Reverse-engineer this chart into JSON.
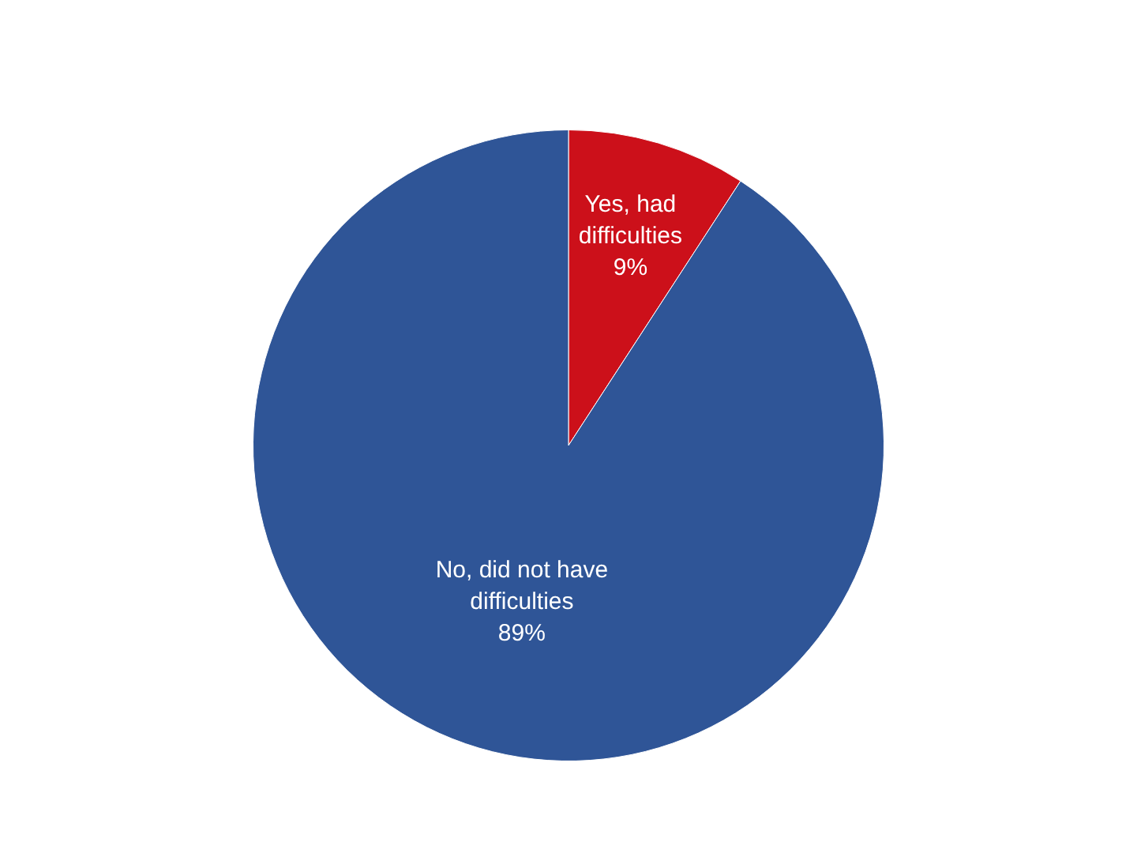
{
  "chart_data": {
    "type": "pie",
    "categories": [
      "Yes, had difficulties",
      "No, did not have difficulties"
    ],
    "values": [
      9,
      89
    ],
    "colors": [
      "#cc101a",
      "#2f5597"
    ],
    "value_labels": [
      "9%",
      "89%"
    ],
    "legend": false
  }
}
